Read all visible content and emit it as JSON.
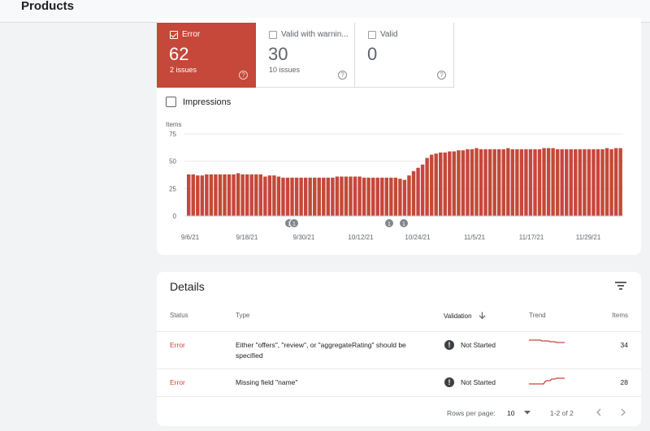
{
  "page": {
    "title": "Products"
  },
  "tiles": [
    {
      "label": "Error",
      "value": "62",
      "sub": "2 issues",
      "checked": true
    },
    {
      "label": "Valid with warnin...",
      "value": "30",
      "sub": "10 issues",
      "checked": false
    },
    {
      "label": "Valid",
      "value": "0",
      "sub": "",
      "checked": false
    }
  ],
  "impressions": {
    "label": "Impressions"
  },
  "chart_data": {
    "type": "bar",
    "ylabel": "Items",
    "yticks": [
      "75",
      "50",
      "25",
      "0"
    ],
    "ylim": [
      0,
      75
    ],
    "xticks": [
      "9/6/21",
      "9/18/21",
      "9/30/21",
      "10/12/21",
      "10/24/21",
      "11/5/21",
      "11/17/21",
      "11/29/21"
    ],
    "color": "#c5483a",
    "annotations": [
      "1",
      "1",
      "1",
      "1"
    ],
    "values": [
      38,
      38,
      37,
      37,
      38,
      38,
      38,
      38,
      38,
      38,
      38,
      39,
      38,
      38,
      38,
      38,
      38,
      36,
      37,
      37,
      36,
      35,
      35,
      35,
      35,
      35,
      35,
      35,
      35,
      35,
      35,
      35,
      35,
      36,
      36,
      36,
      36,
      36,
      36,
      35,
      35,
      35,
      35,
      35,
      35,
      35,
      35,
      34,
      33,
      37,
      41,
      44,
      47,
      53,
      56,
      57,
      58,
      58,
      59,
      59,
      60,
      60,
      61,
      61,
      62,
      61,
      61,
      61,
      61,
      61,
      61,
      62,
      61,
      61,
      61,
      61,
      61,
      61,
      61,
      62,
      62,
      62,
      61,
      61,
      61,
      61,
      61,
      61,
      61,
      61,
      61,
      61,
      61,
      62,
      61,
      62,
      62
    ]
  },
  "details": {
    "title": "Details",
    "columns": {
      "status": "Status",
      "type": "Type",
      "validation": "Validation",
      "trend": "Trend",
      "items": "Items"
    },
    "rows": [
      {
        "status": "Error",
        "type_line1": "Either \"offers\", \"review\", or \"aggregateRating\" should be",
        "type_line2": "specified",
        "validation": "Not Started",
        "items": "34"
      },
      {
        "status": "Error",
        "type_line1": "Missing field \"name\"",
        "type_line2": "",
        "validation": "Not Started",
        "items": "28"
      }
    ],
    "footer": {
      "rows_per_page_label": "Rows per page:",
      "rows_per_page_value": "10",
      "range": "1-2 of 2"
    }
  }
}
